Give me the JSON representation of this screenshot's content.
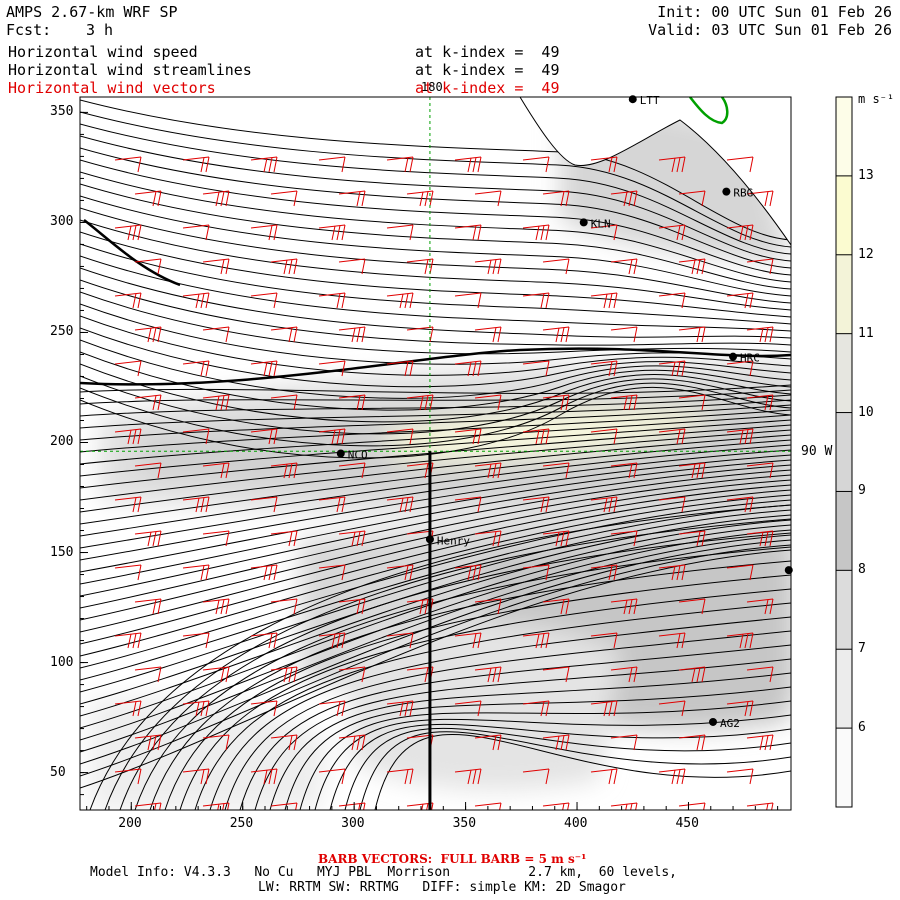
{
  "header": {
    "model": "AMPS 2.67-km WRF SP",
    "fcst_label": "Fcst:",
    "fcst_value": "3 h",
    "init": "Init: 00 UTC Sun 01 Feb 26",
    "valid": "Valid: 03 UTC Sun 01 Feb 26"
  },
  "fields": [
    {
      "name": "Horizontal wind speed",
      "level": "at k-index =  49",
      "color": "#000000"
    },
    {
      "name": "Horizontal wind streamlines",
      "level": "at k-index =  49",
      "color": "#000000"
    },
    {
      "name": "Horizontal wind vectors",
      "level": "at k-index =  49",
      "color": "#e00000"
    }
  ],
  "axes": {
    "x_ticks": [
      "200",
      "250",
      "300",
      "350",
      "400",
      "450"
    ],
    "y_ticks": [
      "350",
      "300",
      "250",
      "200",
      "150",
      "100",
      "50"
    ],
    "x_range": [
      177,
      496
    ],
    "y_range": [
      33,
      357
    ],
    "meridian_label": "180",
    "parallel_label": "90 W"
  },
  "stations": [
    {
      "id": "LTT",
      "x": 425,
      "y": 356
    },
    {
      "id": "RBG",
      "x": 467,
      "y": 314
    },
    {
      "id": "KLN",
      "x": 403,
      "y": 300
    },
    {
      "id": "HRC",
      "x": 470,
      "y": 239
    },
    {
      "id": "NCO",
      "x": 294,
      "y": 195
    },
    {
      "id": "Henry",
      "x": 334,
      "y": 156
    },
    {
      "id": "AG2",
      "x": 461,
      "y": 73
    },
    {
      "id": "",
      "x": 495,
      "y": 142
    }
  ],
  "colorbar": {
    "unit": "m s⁻¹",
    "levels": [
      "13",
      "12",
      "11",
      "10",
      "9",
      "8",
      "7",
      "6"
    ],
    "colors": [
      "#fdfde8",
      "#fbfbd0",
      "#f3f3d8",
      "#e6e6e0",
      "#d6d6d6",
      "#c6c6c6",
      "#dcdcdc",
      "#ececec",
      "#fafafa"
    ]
  },
  "footer": {
    "barb_note": "BARB VECTORS:  FULL BARB = 5 m s⁻¹",
    "model_info": "Model Info: V4.3.3   No Cu   MYJ PBL  Morrison          2.7 km,  60 levels,",
    "physics": "LW: RRTM SW: RRTMG   DIFF: simple KM: 2D Smagor"
  },
  "cross_section": {
    "x": 334,
    "y_start": 33,
    "y_end": 196
  }
}
